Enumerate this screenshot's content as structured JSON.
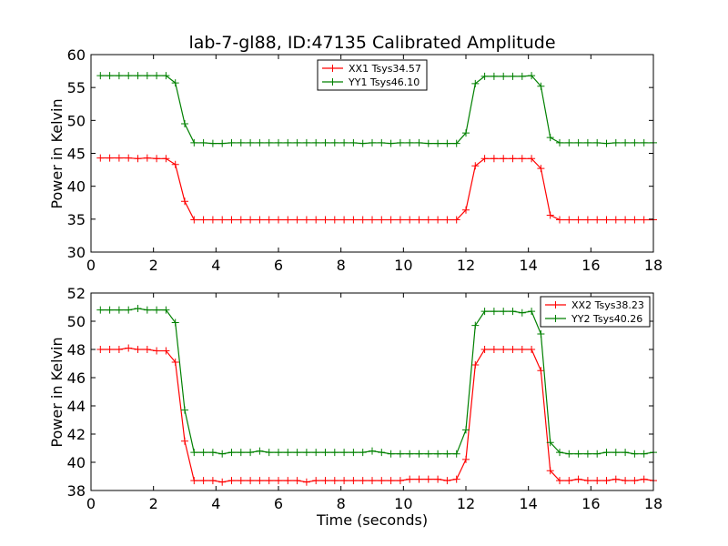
{
  "figure": {
    "title": "lab-7-gl88, ID:47135 Calibrated Amplitude",
    "xlabel": "Time (seconds)"
  },
  "chart_data": [
    {
      "type": "line",
      "ylabel": "Power in Kelvin",
      "xlim": [
        0,
        18
      ],
      "ylim": [
        30,
        60
      ],
      "xticks": [
        0,
        2,
        4,
        6,
        8,
        10,
        12,
        14,
        16,
        18
      ],
      "yticks": [
        30,
        35,
        40,
        45,
        50,
        55,
        60
      ],
      "grid": false,
      "legend": "top-center",
      "x": [
        0.3,
        0.6,
        0.9,
        1.2,
        1.5,
        1.8,
        2.1,
        2.4,
        2.7,
        3.0,
        3.3,
        3.6,
        3.9,
        4.2,
        4.5,
        4.8,
        5.1,
        5.4,
        5.7,
        6.0,
        6.3,
        6.6,
        6.9,
        7.2,
        7.5,
        7.8,
        8.1,
        8.4,
        8.7,
        9.0,
        9.3,
        9.6,
        9.9,
        10.2,
        10.5,
        10.8,
        11.1,
        11.4,
        11.7,
        12.0,
        12.3,
        12.6,
        12.9,
        13.2,
        13.5,
        13.8,
        14.1,
        14.4,
        14.7,
        15.0,
        15.3,
        15.6,
        15.9,
        16.2,
        16.5,
        16.8,
        17.1,
        17.4,
        17.7,
        18.0
      ],
      "series": [
        {
          "name": "XX1 Tsys34.57",
          "color": "#ff0000",
          "values": [
            44.3,
            44.3,
            44.3,
            44.3,
            44.2,
            44.3,
            44.2,
            44.2,
            43.3,
            37.7,
            34.9,
            34.9,
            34.9,
            34.9,
            34.9,
            34.9,
            34.9,
            34.9,
            34.9,
            34.9,
            34.9,
            34.9,
            34.9,
            34.9,
            34.9,
            34.9,
            34.9,
            34.9,
            34.9,
            34.9,
            34.9,
            34.9,
            34.9,
            34.9,
            34.9,
            34.9,
            34.9,
            34.9,
            34.9,
            36.4,
            43.1,
            44.2,
            44.2,
            44.2,
            44.2,
            44.2,
            44.2,
            42.7,
            35.6,
            34.9,
            34.9,
            34.9,
            34.9,
            34.9,
            34.9,
            34.9,
            34.9,
            34.9,
            34.9,
            34.9
          ]
        },
        {
          "name": "YY1 Tsys46.10",
          "color": "#008000",
          "values": [
            56.8,
            56.8,
            56.8,
            56.8,
            56.8,
            56.8,
            56.8,
            56.8,
            55.7,
            49.5,
            46.6,
            46.6,
            46.5,
            46.5,
            46.6,
            46.6,
            46.6,
            46.6,
            46.6,
            46.6,
            46.6,
            46.6,
            46.6,
            46.6,
            46.6,
            46.6,
            46.6,
            46.6,
            46.5,
            46.6,
            46.6,
            46.5,
            46.6,
            46.6,
            46.6,
            46.5,
            46.5,
            46.5,
            46.5,
            48.1,
            55.6,
            56.7,
            56.7,
            56.7,
            56.7,
            56.7,
            56.8,
            55.2,
            47.4,
            46.6,
            46.6,
            46.6,
            46.6,
            46.6,
            46.5,
            46.6,
            46.6,
            46.6,
            46.6,
            46.6
          ]
        }
      ]
    },
    {
      "type": "line",
      "ylabel": "Power in Kelvin",
      "xlim": [
        0,
        18
      ],
      "ylim": [
        38,
        52
      ],
      "xticks": [
        0,
        2,
        4,
        6,
        8,
        10,
        12,
        14,
        16,
        18
      ],
      "yticks": [
        38,
        40,
        42,
        44,
        46,
        48,
        50,
        52
      ],
      "grid": false,
      "legend": "top-right",
      "x": [
        0.3,
        0.6,
        0.9,
        1.2,
        1.5,
        1.8,
        2.1,
        2.4,
        2.7,
        3.0,
        3.3,
        3.6,
        3.9,
        4.2,
        4.5,
        4.8,
        5.1,
        5.4,
        5.7,
        6.0,
        6.3,
        6.6,
        6.9,
        7.2,
        7.5,
        7.8,
        8.1,
        8.4,
        8.7,
        9.0,
        9.3,
        9.6,
        9.9,
        10.2,
        10.5,
        10.8,
        11.1,
        11.4,
        11.7,
        12.0,
        12.3,
        12.6,
        12.9,
        13.2,
        13.5,
        13.8,
        14.1,
        14.4,
        14.7,
        15.0,
        15.3,
        15.6,
        15.9,
        16.2,
        16.5,
        16.8,
        17.1,
        17.4,
        17.7,
        18.0
      ],
      "series": [
        {
          "name": "XX2 Tsys38.23",
          "color": "#ff0000",
          "values": [
            48.0,
            48.0,
            48.0,
            48.1,
            48.0,
            48.0,
            47.9,
            47.9,
            47.1,
            41.5,
            38.7,
            38.7,
            38.7,
            38.6,
            38.7,
            38.7,
            38.7,
            38.7,
            38.7,
            38.7,
            38.7,
            38.7,
            38.6,
            38.7,
            38.7,
            38.7,
            38.7,
            38.7,
            38.7,
            38.7,
            38.7,
            38.7,
            38.7,
            38.8,
            38.8,
            38.8,
            38.8,
            38.7,
            38.8,
            40.2,
            46.9,
            48.0,
            48.0,
            48.0,
            48.0,
            48.0,
            48.0,
            46.5,
            39.4,
            38.7,
            38.7,
            38.8,
            38.7,
            38.7,
            38.7,
            38.8,
            38.7,
            38.7,
            38.8,
            38.7
          ]
        },
        {
          "name": "YY2 Tsys40.26",
          "color": "#008000",
          "values": [
            50.8,
            50.8,
            50.8,
            50.8,
            50.9,
            50.8,
            50.8,
            50.8,
            49.9,
            43.7,
            40.7,
            40.7,
            40.7,
            40.6,
            40.7,
            40.7,
            40.7,
            40.8,
            40.7,
            40.7,
            40.7,
            40.7,
            40.7,
            40.7,
            40.7,
            40.7,
            40.7,
            40.7,
            40.7,
            40.8,
            40.7,
            40.6,
            40.6,
            40.6,
            40.6,
            40.6,
            40.6,
            40.6,
            40.6,
            42.3,
            49.7,
            50.7,
            50.7,
            50.7,
            50.7,
            50.6,
            50.7,
            49.1,
            41.4,
            40.7,
            40.6,
            40.6,
            40.6,
            40.6,
            40.7,
            40.7,
            40.7,
            40.6,
            40.6,
            40.7
          ]
        }
      ]
    }
  ]
}
